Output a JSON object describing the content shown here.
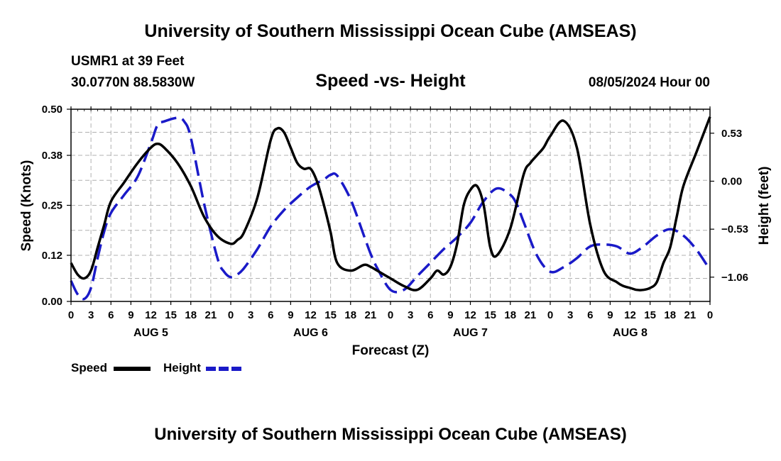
{
  "header": {
    "title_top": "University of Southern Mississippi Ocean Cube (AMSEAS)",
    "station": "USMR1 at 39 Feet",
    "coords": "30.0770N  88.5830W",
    "subtitle": "Speed -vs- Height",
    "datetime": "08/05/2024 Hour 00",
    "title_bottom": "University of Southern Mississippi Ocean Cube (AMSEAS)"
  },
  "legend": {
    "speed_label": "Speed",
    "height_label": "Height"
  },
  "colors": {
    "speed": "#000000",
    "height": "#1a1ac8",
    "grid": "#b0b0b0"
  },
  "chart_data": {
    "type": "line",
    "title": "Speed -vs- Height",
    "xlabel": "Forecast (Z)",
    "ylabel": "Speed (Knots)",
    "y2label": "Height (feet)",
    "xlim": [
      0,
      96
    ],
    "ylim": [
      0,
      0.5
    ],
    "y2lim": [
      -1.328,
      0.795
    ],
    "xticks": [
      0,
      3,
      6,
      9,
      12,
      15,
      18,
      21,
      24,
      27,
      30,
      33,
      36,
      39,
      42,
      45,
      48,
      51,
      54,
      57,
      60,
      63,
      66,
      69,
      72,
      75,
      78,
      81,
      84,
      87,
      90,
      93,
      96
    ],
    "xtick_labels": [
      "0",
      "3",
      "6",
      "9",
      "12",
      "15",
      "18",
      "21",
      "0",
      "3",
      "6",
      "9",
      "12",
      "15",
      "18",
      "21",
      "0",
      "3",
      "6",
      "9",
      "12",
      "15",
      "18",
      "21",
      "0",
      "3",
      "6",
      "9",
      "12",
      "15",
      "18",
      "21",
      "0"
    ],
    "day_labels": [
      {
        "x": 12,
        "label": "AUG 5"
      },
      {
        "x": 36,
        "label": "AUG 6"
      },
      {
        "x": 60,
        "label": "AUG 7"
      },
      {
        "x": 84,
        "label": "AUG 8"
      }
    ],
    "yticks": [
      0.0,
      0.12,
      0.25,
      0.38,
      0.5
    ],
    "ytick_labels": [
      "0.00",
      "0.12",
      "0.25",
      "0.38",
      "0.50"
    ],
    "y2ticks": [
      0.53,
      0.0,
      -0.53,
      -1.06
    ],
    "y2tick_labels": [
      "0.53",
      "0.00",
      "−0.53",
      "−1.06"
    ],
    "grid": true,
    "series": [
      {
        "name": "Speed",
        "axis": "left",
        "style": "solid",
        "x": [
          0,
          1,
          2,
          3,
          4,
          5,
          6,
          8,
          10,
          12,
          13,
          14,
          16,
          18,
          20,
          22,
          24,
          25,
          26,
          28,
          30,
          31,
          32,
          33,
          34,
          35,
          36,
          37,
          38,
          39,
          40,
          42,
          44,
          45,
          46,
          48,
          50,
          52,
          54,
          55,
          56,
          57,
          58,
          59,
          60,
          61,
          62,
          63,
          64,
          66,
          68,
          69,
          70,
          71,
          72,
          74,
          76,
          78,
          80,
          82,
          83,
          84,
          85,
          86,
          87,
          88,
          89,
          90,
          91,
          92,
          94,
          96
        ],
        "values": [
          0.1,
          0.07,
          0.06,
          0.08,
          0.14,
          0.2,
          0.26,
          0.31,
          0.36,
          0.4,
          0.41,
          0.4,
          0.36,
          0.3,
          0.22,
          0.17,
          0.15,
          0.16,
          0.18,
          0.27,
          0.42,
          0.45,
          0.44,
          0.4,
          0.36,
          0.345,
          0.345,
          0.31,
          0.25,
          0.18,
          0.1,
          0.08,
          0.095,
          0.09,
          0.08,
          0.06,
          0.04,
          0.03,
          0.06,
          0.08,
          0.07,
          0.09,
          0.15,
          0.25,
          0.29,
          0.3,
          0.25,
          0.14,
          0.12,
          0.19,
          0.33,
          0.36,
          0.38,
          0.4,
          0.43,
          0.47,
          0.4,
          0.2,
          0.08,
          0.05,
          0.04,
          0.035,
          0.03,
          0.03,
          0.035,
          0.05,
          0.1,
          0.14,
          0.22,
          0.3,
          0.39,
          0.48
        ]
      },
      {
        "name": "Height",
        "axis": "right",
        "style": "dashed",
        "x": [
          0,
          1,
          2,
          3,
          4,
          5,
          6,
          8,
          10,
          12,
          13,
          14,
          16,
          17,
          18,
          20,
          22,
          23,
          24,
          25,
          26,
          28,
          30,
          32,
          34,
          36,
          38,
          39,
          40,
          42,
          44,
          45,
          46,
          48,
          50,
          52,
          54,
          56,
          58,
          60,
          62,
          64,
          66,
          67,
          68,
          70,
          72,
          74,
          76,
          78,
          80,
          82,
          84,
          86,
          88,
          90,
          92,
          94,
          96
        ],
        "values": [
          -1.1,
          -1.25,
          -1.3,
          -1.18,
          -0.85,
          -0.55,
          -0.35,
          -0.15,
          0.05,
          0.42,
          0.62,
          0.66,
          0.7,
          0.66,
          0.48,
          -0.25,
          -0.85,
          -1.0,
          -1.06,
          -1.03,
          -0.96,
          -0.75,
          -0.5,
          -0.32,
          -0.18,
          -0.06,
          0.02,
          0.07,
          0.06,
          -0.2,
          -0.6,
          -0.8,
          -0.96,
          -1.2,
          -1.2,
          -1.05,
          -0.9,
          -0.75,
          -0.62,
          -0.46,
          -0.22,
          -0.08,
          -0.15,
          -0.26,
          -0.45,
          -0.82,
          -1.0,
          -0.95,
          -0.85,
          -0.72,
          -0.7,
          -0.72,
          -0.8,
          -0.72,
          -0.6,
          -0.53,
          -0.6,
          -0.76,
          -0.98
        ]
      }
    ]
  }
}
